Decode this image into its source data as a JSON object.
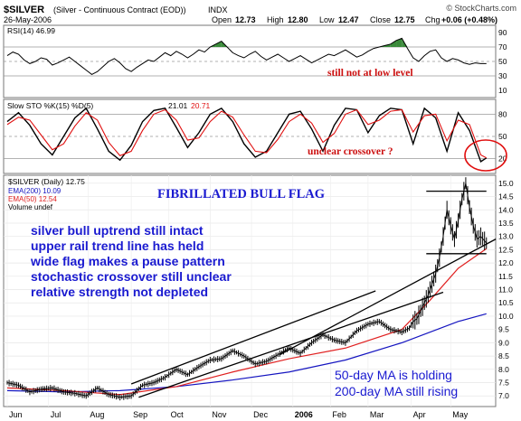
{
  "header": {
    "symbol": "$SILVER",
    "description": "(Silver - Continuous Contract (EOD))",
    "exchange": "INDX",
    "watermark": "© StockCharts.com",
    "date": "26-May-2006",
    "open_label": "Open",
    "open_value": "12.73",
    "high_label": "High",
    "high_value": "12.80",
    "low_label": "Low",
    "low_value": "12.47",
    "close_label": "Close",
    "close_value": "12.75",
    "chg_label": "Chg",
    "chg_value": "+0.06 (+0.48%)"
  },
  "chart_data": [
    {
      "type": "line",
      "legend_label": "RSI(14) 46.99",
      "ylim": [
        0,
        100
      ],
      "yticks": [
        "90",
        "70",
        "50",
        "30",
        "10"
      ],
      "reference_lines": [
        70,
        50,
        30
      ],
      "annotation": "still not at low level",
      "x": [
        0,
        3,
        6,
        9,
        12,
        15,
        18,
        21,
        24,
        27,
        30,
        33,
        36,
        39,
        42,
        45,
        48,
        51,
        54,
        57,
        60,
        63,
        66,
        69,
        72,
        75,
        78,
        81,
        84,
        87,
        90,
        93,
        96,
        99,
        102,
        105,
        108,
        111,
        114,
        117,
        120,
        123,
        126,
        129,
        132,
        135,
        138,
        141,
        144,
        147,
        150,
        153,
        156,
        159,
        162,
        165,
        168,
        171,
        174,
        177,
        180,
        183,
        186,
        189,
        192,
        195,
        198,
        201,
        204,
        207,
        210,
        213,
        216,
        219,
        222,
        225,
        228,
        231,
        234,
        237,
        240,
        243,
        246,
        249,
        252,
        255
      ],
      "values": [
        58,
        63,
        60,
        52,
        47,
        50,
        55,
        53,
        45,
        48,
        52,
        56,
        50,
        44,
        38,
        32,
        36,
        43,
        50,
        54,
        48,
        40,
        36,
        42,
        47,
        52,
        50,
        56,
        62,
        58,
        64,
        60,
        55,
        60,
        66,
        63,
        70,
        74,
        78,
        70,
        62,
        58,
        55,
        60,
        64,
        57,
        52,
        56,
        60,
        55,
        50,
        54,
        58,
        53,
        48,
        52,
        56,
        60,
        58,
        62,
        66,
        61,
        56,
        59,
        64,
        68,
        70,
        72,
        74,
        79,
        82,
        68,
        55,
        50,
        58,
        64,
        66,
        55,
        50,
        54,
        52,
        48,
        46,
        48,
        47,
        47
      ]
    },
    {
      "type": "line",
      "legend_label": "Slow STO %K(15) %D(5)",
      "k_value": "21.01",
      "d_value": "20.71",
      "ylim": [
        0,
        100
      ],
      "yticks": [
        "80",
        "50",
        "20"
      ],
      "reference_lines": [
        80,
        50,
        20
      ],
      "annotation": "unclear crossover ?",
      "series": [
        {
          "name": "%K(15)",
          "color": "#000000",
          "x": [
            0,
            6,
            12,
            18,
            24,
            30,
            36,
            42,
            48,
            54,
            60,
            66,
            72,
            78,
            84,
            90,
            96,
            102,
            108,
            114,
            120,
            126,
            132,
            138,
            144,
            150,
            156,
            162,
            168,
            174,
            180,
            186,
            192,
            198,
            204,
            210,
            216,
            222,
            228,
            234,
            240,
            246,
            252,
            255
          ],
          "values": [
            70,
            82,
            65,
            40,
            25,
            50,
            75,
            88,
            60,
            30,
            18,
            38,
            70,
            85,
            88,
            62,
            35,
            55,
            80,
            88,
            70,
            40,
            22,
            30,
            55,
            80,
            84,
            60,
            30,
            65,
            88,
            86,
            55,
            78,
            88,
            86,
            40,
            88,
            75,
            30,
            82,
            58,
            16,
            21
          ]
        },
        {
          "name": "%D(5)",
          "color": "#e01010",
          "x": [
            0,
            6,
            12,
            18,
            24,
            30,
            36,
            42,
            48,
            54,
            60,
            66,
            72,
            78,
            84,
            90,
            96,
            102,
            108,
            114,
            120,
            126,
            132,
            138,
            144,
            150,
            156,
            162,
            168,
            174,
            180,
            186,
            192,
            198,
            204,
            210,
            216,
            222,
            228,
            234,
            240,
            246,
            252,
            255
          ],
          "values": [
            66,
            76,
            72,
            52,
            32,
            40,
            64,
            82,
            72,
            42,
            24,
            30,
            58,
            80,
            86,
            72,
            45,
            48,
            70,
            84,
            76,
            52,
            30,
            28,
            46,
            70,
            80,
            68,
            42,
            54,
            80,
            86,
            66,
            72,
            84,
            86,
            56,
            78,
            80,
            44,
            72,
            66,
            25,
            21
          ]
        }
      ]
    },
    {
      "type": "line",
      "title": "FIBRILLATED BULL FLAG",
      "legend": [
        "$SILVER (Daily) 12.75",
        "EMA(200) 10.09",
        "EMA(50) 12.54",
        "Volume undef"
      ],
      "ylim": [
        6.6,
        15.3
      ],
      "yticks": [
        "15.0",
        "14.5",
        "14.0",
        "13.5",
        "13.0",
        "12.5",
        "12.0",
        "11.5",
        "11.0",
        "10.5",
        "10.0",
        "9.5",
        "9.0",
        "8.5",
        "8.0",
        "7.5",
        "7.0"
      ],
      "x_labels": [
        "Jun",
        "Jul",
        "Aug",
        "Sep",
        "Oct",
        "Nov",
        "Dec",
        "2006",
        "Feb",
        "Mar",
        "Apr",
        "May"
      ],
      "x_label_days": [
        0,
        22,
        43,
        66,
        86,
        108,
        130,
        152,
        172,
        192,
        215,
        236
      ],
      "series": [
        {
          "name": "$SILVER (Daily)",
          "color": "#000000",
          "x": [
            0,
            6,
            12,
            18,
            24,
            30,
            36,
            42,
            48,
            54,
            60,
            66,
            72,
            78,
            84,
            90,
            96,
            102,
            108,
            114,
            120,
            126,
            132,
            138,
            144,
            150,
            156,
            162,
            168,
            174,
            180,
            186,
            192,
            198,
            204,
            210,
            214,
            216,
            218,
            220,
            222,
            224,
            226,
            228,
            230,
            232,
            234,
            236,
            238,
            240,
            242,
            244,
            246,
            248,
            250,
            252,
            255
          ],
          "values": [
            7.5,
            7.4,
            7.15,
            7.25,
            7.3,
            7.15,
            7.1,
            7.0,
            7.3,
            7.05,
            6.95,
            7.0,
            7.4,
            7.5,
            7.7,
            8.0,
            7.8,
            8.1,
            8.35,
            8.4,
            8.7,
            8.5,
            8.2,
            8.3,
            8.55,
            8.8,
            8.6,
            9.0,
            9.3,
            9.1,
            9.0,
            9.45,
            9.7,
            9.8,
            9.5,
            9.4,
            9.55,
            9.8,
            9.9,
            10.2,
            10.5,
            10.8,
            11.2,
            11.6,
            12.2,
            13.0,
            14.0,
            13.4,
            12.9,
            13.6,
            14.4,
            15.0,
            14.1,
            13.4,
            12.9,
            13.0,
            12.75
          ]
        },
        {
          "name": "EMA(200)",
          "color": "#1515c0",
          "value_label": "10.09",
          "x": [
            0,
            30,
            60,
            90,
            120,
            150,
            180,
            210,
            240,
            255
          ],
          "values": [
            7.2,
            7.15,
            7.2,
            7.35,
            7.6,
            7.9,
            8.35,
            9.0,
            9.8,
            10.09
          ]
        },
        {
          "name": "EMA(50)",
          "color": "#e02020",
          "value_label": "12.54",
          "x": [
            0,
            30,
            60,
            90,
            120,
            150,
            180,
            210,
            225,
            240,
            255
          ],
          "values": [
            7.3,
            7.2,
            7.05,
            7.35,
            7.9,
            8.4,
            8.8,
            9.5,
            10.6,
            11.8,
            12.54
          ]
        }
      ],
      "trend_lines": [
        {
          "x": [
            66,
            196
          ],
          "values": [
            7.45,
            10.95
          ]
        },
        {
          "x": [
            70,
            232
          ],
          "values": [
            6.95,
            10.9
          ]
        },
        {
          "x": [
            145,
            260
          ],
          "values": [
            8.55,
            12.9
          ]
        },
        {
          "x": [
            223,
            255
          ],
          "values": [
            14.7,
            14.7
          ]
        },
        {
          "x": [
            223,
            255
          ],
          "values": [
            12.35,
            12.35
          ]
        }
      ],
      "annotations": {
        "bullets": [
          "silver bull uptrend still intact",
          "upper rail trend line has held",
          "wide flag makes a pause pattern",
          "stochastic crossover still unclear",
          "relative strength not depleted"
        ],
        "ma_notes": [
          "50-day MA is holding",
          "200-day MA still rising"
        ]
      }
    }
  ],
  "colors": {
    "annotation_blue": "#1a1ad0",
    "annotation_red": "#cc1010",
    "rsi_fill": "#3a8a3a",
    "panel_border": "#777777"
  }
}
